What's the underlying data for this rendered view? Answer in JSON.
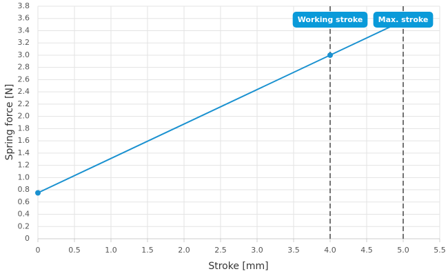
{
  "chart_data": {
    "type": "line",
    "xlabel": "Stroke [mm]",
    "ylabel": "Spring force [N]",
    "series": [
      {
        "style": "line",
        "color": "#1a91d0",
        "x": [
          0,
          5
        ],
        "values": [
          0.75,
          3.5625
        ]
      },
      {
        "style": "points",
        "color": "#1a91d0",
        "x": [
          0,
          4
        ],
        "values": [
          0.75,
          3.0
        ]
      }
    ],
    "vlines": [
      {
        "x": 4,
        "label": "Working stroke"
      },
      {
        "x": 5,
        "label": "Max. stroke"
      }
    ],
    "annotation_color": "#0a9ad9",
    "xlim": [
      0,
      5.5
    ],
    "ylim": [
      0,
      3.8
    ],
    "xticks": [
      0,
      0.5,
      {
        "value": 1,
        "label": "1.0"
      },
      1.5,
      {
        "value": 2,
        "label": "2.0"
      },
      2.5,
      {
        "value": 3,
        "label": "3.0"
      },
      3.5,
      {
        "value": 4,
        "label": "4.0"
      },
      4.5,
      {
        "value": 5,
        "label": "5.0"
      },
      5.5
    ],
    "yticks": [
      0,
      0.2,
      0.4,
      0.6,
      0.8,
      {
        "value": 1,
        "label": "1.0"
      },
      1.2,
      1.4,
      1.6,
      1.8,
      {
        "value": 2,
        "label": "2.0"
      },
      2.2,
      2.4,
      2.6,
      2.8,
      {
        "value": 3,
        "label": "3.0"
      },
      3.2,
      3.4,
      3.6,
      3.8
    ],
    "grid": true
  }
}
